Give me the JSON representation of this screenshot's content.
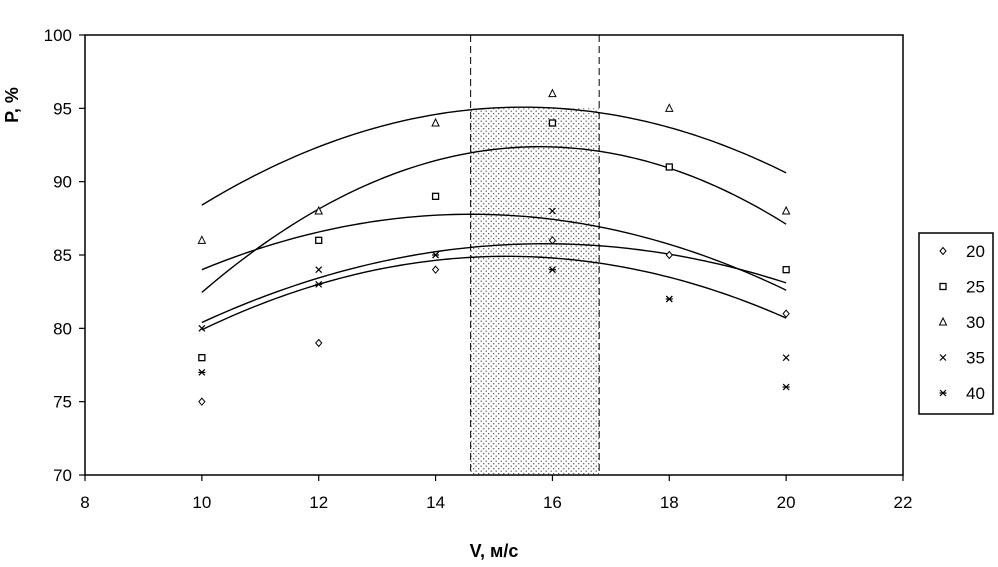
{
  "chart_data": {
    "type": "scatter",
    "title": "",
    "xlabel": "V, м/с",
    "ylabel": "P, %",
    "xlim": [
      8,
      22
    ],
    "ylim": [
      70,
      100
    ],
    "xticks": [
      8,
      10,
      12,
      14,
      16,
      18,
      20,
      22
    ],
    "yticks": [
      70,
      75,
      80,
      85,
      90,
      95,
      100
    ],
    "grid": false,
    "legend": "right",
    "shaded_region": {
      "x": [
        14.6,
        16.8
      ]
    },
    "series": [
      {
        "name": "20",
        "marker": "diamond",
        "x": [
          10,
          12,
          14,
          16,
          18,
          20
        ],
        "y": [
          75,
          79,
          84,
          86,
          85,
          81
        ],
        "trend": [
          -0.156,
          4.95,
          46.5
        ]
      },
      {
        "name": "25",
        "marker": "square",
        "x": [
          10,
          12,
          14,
          16,
          18,
          20
        ],
        "y": [
          78,
          86,
          89,
          94,
          91,
          84
        ],
        "trend": [
          -0.297,
          9.375,
          18.4
        ]
      },
      {
        "name": "30",
        "marker": "triangle",
        "x": [
          10,
          12,
          14,
          16,
          18,
          20
        ],
        "y": [
          86,
          88,
          94,
          96,
          95,
          88
        ],
        "trend": [
          -0.221,
          6.85,
          42.0
        ]
      },
      {
        "name": "35",
        "marker": "x",
        "x": [
          10,
          12,
          14,
          16,
          18,
          20
        ],
        "y": [
          80,
          84,
          85,
          88,
          82,
          78
        ],
        "trend": [
          -0.178,
          5.2,
          49.8
        ]
      },
      {
        "name": "40",
        "marker": "star",
        "x": [
          10,
          12,
          14,
          16,
          18,
          20
        ],
        "y": [
          77,
          83,
          85,
          84,
          82,
          76
        ],
        "trend": [
          -0.184,
          5.6,
          42.3
        ]
      }
    ]
  }
}
